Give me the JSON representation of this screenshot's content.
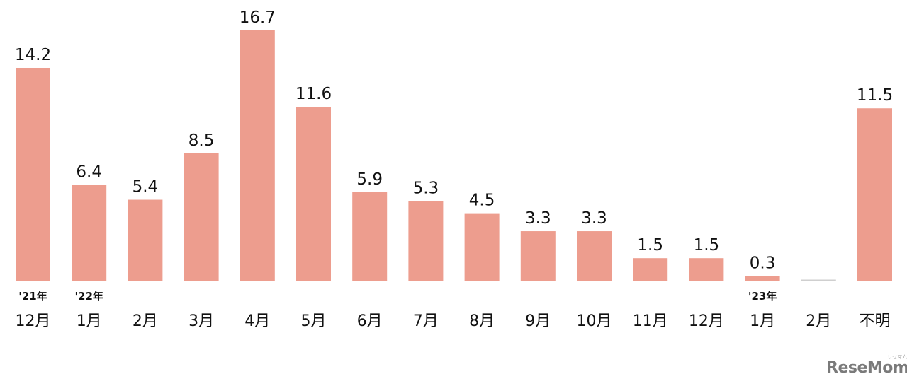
{
  "chart_data": {
    "type": "bar",
    "title": "",
    "xlabel": "",
    "ylabel": "",
    "ylim": [
      0,
      16.7
    ],
    "grid": false,
    "bar_color": "#ed9d8e",
    "empty_bar_color": "#cfcfcf",
    "categories": [
      "12月",
      "1月",
      "2月",
      "3月",
      "4月",
      "5月",
      "6月",
      "7月",
      "8月",
      "9月",
      "10月",
      "11月",
      "12月",
      "1月",
      "2月",
      "不明"
    ],
    "year_labels": [
      "'21年",
      "'22年",
      "",
      "",
      "",
      "",
      "",
      "",
      "",
      "",
      "",
      "",
      "",
      "'23年",
      "",
      ""
    ],
    "values": [
      14.2,
      6.4,
      5.4,
      8.5,
      16.7,
      11.6,
      5.9,
      5.3,
      4.5,
      3.3,
      3.3,
      1.5,
      1.5,
      0.3,
      0,
      11.5
    ],
    "value_labels": [
      "14.2",
      "6.4",
      "5.4",
      "8.5",
      "16.7",
      "11.6",
      "5.9",
      "5.3",
      "4.5",
      "3.3",
      "3.3",
      "1.5",
      "1.5",
      "0.3",
      "",
      "11.5"
    ]
  },
  "watermark": {
    "brand": "ReseMom",
    "kana": "リセマム"
  }
}
